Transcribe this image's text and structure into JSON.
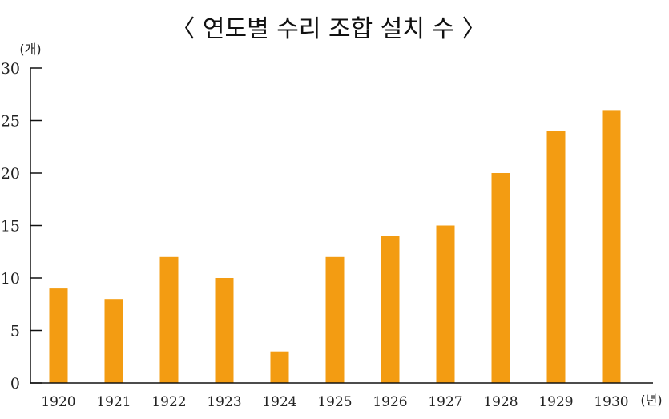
{
  "chart_data": {
    "type": "bar",
    "title": "〈 연도별 수리 조합 설치 수 〉",
    "ylabel": "(개)",
    "xlabel": "(년)",
    "categories": [
      "1920",
      "1921",
      "1922",
      "1923",
      "1924",
      "1925",
      "1926",
      "1927",
      "1928",
      "1929",
      "1930"
    ],
    "values": [
      9,
      8,
      12,
      10,
      3,
      12,
      14,
      15,
      20,
      24,
      26
    ],
    "ylim": [
      0,
      30
    ],
    "yticks": [
      0,
      5,
      10,
      15,
      20,
      25,
      30
    ],
    "bar_color": "#F39C12",
    "grid": false
  }
}
